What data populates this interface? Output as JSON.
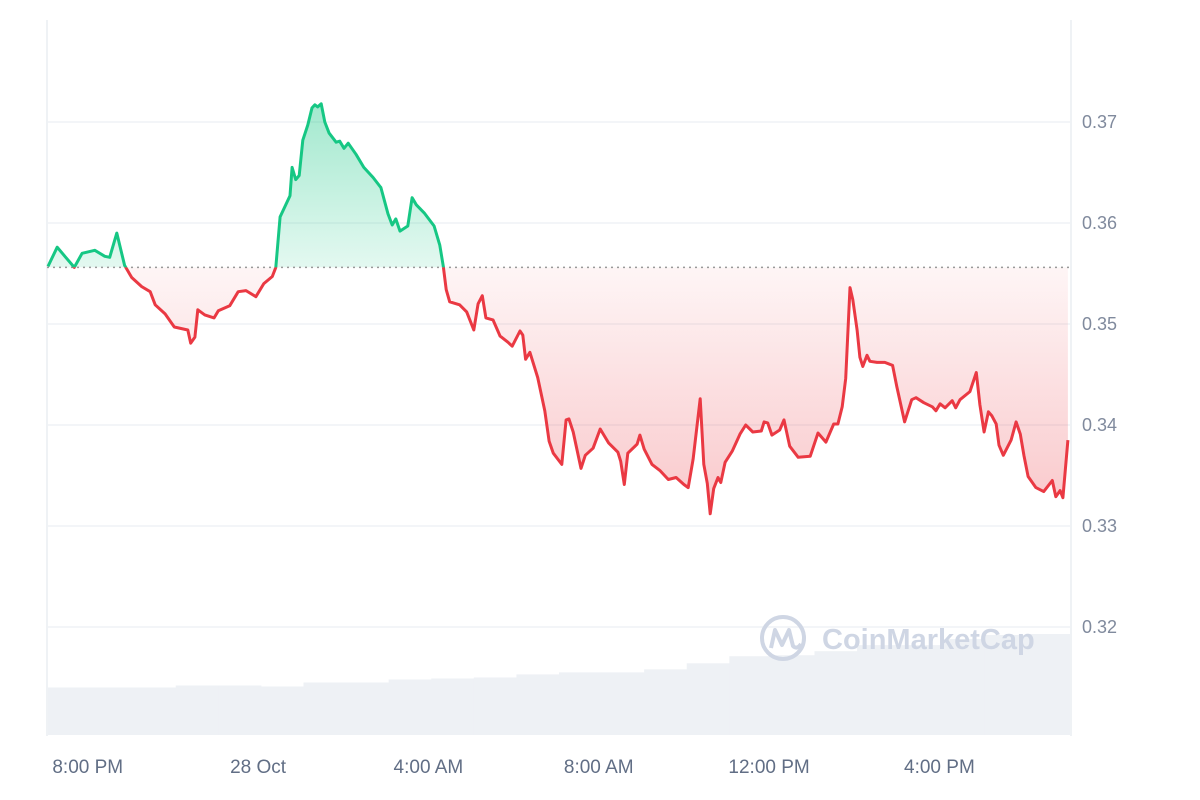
{
  "chart_data": {
    "type": "area",
    "title": "",
    "xlabel": "",
    "ylabel": "",
    "x_range": [
      "27 Oct 19:04",
      "28 Oct 19:04"
    ],
    "ylim": [
      0.3093,
      0.3801
    ],
    "baseline": 0.3556,
    "grid": true,
    "y_ticks": [
      "0.32",
      "0.33",
      "0.34",
      "0.35",
      "0.36",
      "0.37"
    ],
    "y_tick_values": [
      0.32,
      0.33,
      0.34,
      0.35,
      0.36,
      0.37
    ],
    "x_ticks": [
      "8:00 PM",
      "28 Oct",
      "4:00 AM",
      "8:00 AM",
      "12:00 PM",
      "4:00 PM"
    ],
    "x_tick_times": [
      "20:00",
      "00:00",
      "04:00",
      "08:00",
      "12:00",
      "16:00"
    ],
    "colors": {
      "up": "#16c784",
      "down": "#ea3943",
      "grid": "#eff2f5",
      "volume": "#eef1f5",
      "baseline": "#999999"
    },
    "points": [
      [
        "19:04",
        0.3557
      ],
      [
        "19:17",
        0.3576
      ],
      [
        "19:29",
        0.3566
      ],
      [
        "19:41",
        0.3556
      ],
      [
        "19:52",
        0.357
      ],
      [
        "20:10",
        0.3573
      ],
      [
        "20:24",
        0.3567
      ],
      [
        "20:31",
        0.3566
      ],
      [
        "20:41",
        0.359
      ],
      [
        "20:52",
        0.3558
      ],
      [
        "21:02",
        0.3546
      ],
      [
        "21:16",
        0.3537
      ],
      [
        "21:28",
        0.3532
      ],
      [
        "21:35",
        0.3519
      ],
      [
        "21:49",
        0.351
      ],
      [
        "22:02",
        0.3497
      ],
      [
        "22:21",
        0.3494
      ],
      [
        "22:25",
        0.3481
      ],
      [
        "22:31",
        0.3487
      ],
      [
        "22:35",
        0.3514
      ],
      [
        "22:45",
        0.3509
      ],
      [
        "22:58",
        0.3506
      ],
      [
        "23:04",
        0.3513
      ],
      [
        "23:20",
        0.3518
      ],
      [
        "23:32",
        0.3532
      ],
      [
        "23:43",
        0.3533
      ],
      [
        "23:57",
        0.3527
      ],
      [
        "00:08",
        0.354
      ],
      [
        "00:20",
        0.3547
      ],
      [
        "00:25",
        0.3556
      ],
      [
        "00:31",
        0.3606
      ],
      [
        "00:45",
        0.3627
      ],
      [
        "00:48",
        0.3655
      ],
      [
        "00:53",
        0.3643
      ],
      [
        "00:58",
        0.3647
      ],
      [
        "01:03",
        0.3682
      ],
      [
        "01:10",
        0.3697
      ],
      [
        "01:16",
        0.3714
      ],
      [
        "01:20",
        0.3717
      ],
      [
        "01:24",
        0.3715
      ],
      [
        "01:29",
        0.3718
      ],
      [
        "01:34",
        0.37
      ],
      [
        "01:40",
        0.3689
      ],
      [
        "01:50",
        0.368
      ],
      [
        "01:55",
        0.3681
      ],
      [
        "02:01",
        0.3674
      ],
      [
        "02:07",
        0.3679
      ],
      [
        "02:18",
        0.3668
      ],
      [
        "02:29",
        0.3655
      ],
      [
        "02:42",
        0.3645
      ],
      [
        "02:53",
        0.3635
      ],
      [
        "03:03",
        0.3609
      ],
      [
        "03:09",
        0.3598
      ],
      [
        "03:14",
        0.3604
      ],
      [
        "03:20",
        0.3592
      ],
      [
        "03:31",
        0.3597
      ],
      [
        "03:37",
        0.3625
      ],
      [
        "03:43",
        0.3618
      ],
      [
        "03:54",
        0.361
      ],
      [
        "04:08",
        0.3597
      ],
      [
        "04:16",
        0.3578
      ],
      [
        "04:21",
        0.3557
      ],
      [
        "04:25",
        0.3534
      ],
      [
        "04:30",
        0.3522
      ],
      [
        "04:44",
        0.3519
      ],
      [
        "04:54",
        0.3512
      ],
      [
        "05:04",
        0.3494
      ],
      [
        "05:10",
        0.352
      ],
      [
        "05:16",
        0.3528
      ],
      [
        "05:21",
        0.3506
      ],
      [
        "05:31",
        0.3504
      ],
      [
        "05:41",
        0.3488
      ],
      [
        "05:52",
        0.3482
      ],
      [
        "05:58",
        0.3478
      ],
      [
        "06:09",
        0.3493
      ],
      [
        "06:13",
        0.3489
      ],
      [
        "06:17",
        0.3465
      ],
      [
        "06:23",
        0.3472
      ],
      [
        "06:34",
        0.3447
      ],
      [
        "06:44",
        0.3414
      ],
      [
        "06:50",
        0.3384
      ],
      [
        "06:56",
        0.3372
      ],
      [
        "07:08",
        0.3361
      ],
      [
        "07:14",
        0.3405
      ],
      [
        "07:18",
        0.3406
      ],
      [
        "07:24",
        0.3393
      ],
      [
        "07:35",
        0.3357
      ],
      [
        "07:41",
        0.337
      ],
      [
        "07:52",
        0.3377
      ],
      [
        "08:02",
        0.3396
      ],
      [
        "08:14",
        0.3382
      ],
      [
        "08:27",
        0.3373
      ],
      [
        "08:31",
        0.3364
      ],
      [
        "08:36",
        0.3341
      ],
      [
        "08:41",
        0.3372
      ],
      [
        "08:54",
        0.3381
      ],
      [
        "08:58",
        0.339
      ],
      [
        "09:04",
        0.3376
      ],
      [
        "09:15",
        0.3361
      ],
      [
        "09:26",
        0.3355
      ],
      [
        "09:38",
        0.3346
      ],
      [
        "09:49",
        0.3348
      ],
      [
        "10:00",
        0.3341
      ],
      [
        "10:06",
        0.3338
      ],
      [
        "10:13",
        0.3366
      ],
      [
        "10:23",
        0.3426
      ],
      [
        "10:28",
        0.3361
      ],
      [
        "10:33",
        0.3342
      ],
      [
        "10:37",
        0.3312
      ],
      [
        "10:42",
        0.3337
      ],
      [
        "10:48",
        0.3348
      ],
      [
        "10:52",
        0.3343
      ],
      [
        "10:58",
        0.3363
      ],
      [
        "11:08",
        0.3374
      ],
      [
        "11:19",
        0.3391
      ],
      [
        "11:27",
        0.34
      ],
      [
        "11:37",
        0.3393
      ],
      [
        "11:49",
        0.3394
      ],
      [
        "11:53",
        0.3403
      ],
      [
        "11:58",
        0.3402
      ],
      [
        "12:04",
        0.339
      ],
      [
        "12:15",
        0.3395
      ],
      [
        "12:21",
        0.3405
      ],
      [
        "12:29",
        0.3379
      ],
      [
        "12:41",
        0.3368
      ],
      [
        "12:58",
        0.3369
      ],
      [
        "13:09",
        0.3392
      ],
      [
        "13:20",
        0.3383
      ],
      [
        "13:31",
        0.3401
      ],
      [
        "13:37",
        0.3401
      ],
      [
        "13:43",
        0.3418
      ],
      [
        "13:48",
        0.3446
      ],
      [
        "13:54",
        0.3536
      ],
      [
        "13:58",
        0.3524
      ],
      [
        "14:04",
        0.3494
      ],
      [
        "14:08",
        0.3467
      ],
      [
        "14:12",
        0.3458
      ],
      [
        "14:18",
        0.3469
      ],
      [
        "14:22",
        0.3463
      ],
      [
        "14:32",
        0.3462
      ],
      [
        "14:43",
        0.3462
      ],
      [
        "14:54",
        0.3459
      ],
      [
        "15:00",
        0.3438
      ],
      [
        "15:11",
        0.3403
      ],
      [
        "15:21",
        0.3425
      ],
      [
        "15:27",
        0.3427
      ],
      [
        "15:38",
        0.3422
      ],
      [
        "15:50",
        0.3418
      ],
      [
        "15:55",
        0.3414
      ],
      [
        "16:01",
        0.3421
      ],
      [
        "16:08",
        0.3417
      ],
      [
        "16:18",
        0.3424
      ],
      [
        "16:23",
        0.3417
      ],
      [
        "16:29",
        0.3425
      ],
      [
        "16:43",
        0.3433
      ],
      [
        "16:52",
        0.3452
      ],
      [
        "16:57",
        0.342
      ],
      [
        "17:03",
        0.3393
      ],
      [
        "17:09",
        0.3413
      ],
      [
        "17:14",
        0.3409
      ],
      [
        "17:20",
        0.3401
      ],
      [
        "17:24",
        0.338
      ],
      [
        "17:30",
        0.337
      ],
      [
        "17:41",
        0.3385
      ],
      [
        "17:48",
        0.3403
      ],
      [
        "17:54",
        0.3391
      ],
      [
        "17:59",
        0.337
      ],
      [
        "18:05",
        0.3349
      ],
      [
        "18:16",
        0.3338
      ],
      [
        "18:27",
        0.3334
      ],
      [
        "18:39",
        0.3345
      ],
      [
        "18:44",
        0.3329
      ],
      [
        "18:50",
        0.3335
      ],
      [
        "18:54",
        0.3328
      ],
      [
        "19:01",
        0.3385
      ]
    ],
    "volume_relative": [
      0.47,
      0.47,
      0.47,
      0.49,
      0.49,
      0.48,
      0.52,
      0.52,
      0.55,
      0.56,
      0.57,
      0.6,
      0.62,
      0.62,
      0.65,
      0.71,
      0.78,
      0.79,
      0.83,
      0.89,
      0.89,
      0.95,
      0.99,
      1.0
    ]
  },
  "watermark": {
    "brand": "CoinMarketCap"
  }
}
